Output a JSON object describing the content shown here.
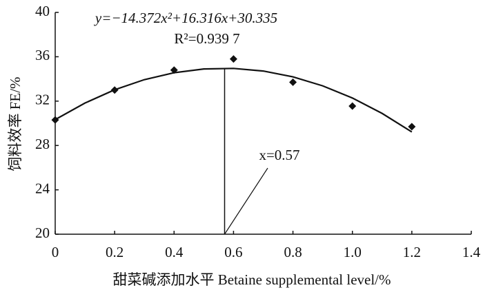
{
  "chart_data": {
    "type": "scatter",
    "equation": "y=−14.372x²+16.316x+30.335",
    "r_squared": "R²=0.939 7",
    "annotation": "x=0.57",
    "xlabel": "甜菜碱添加水平 Betaine supplemental level/%",
    "ylabel": "饲料效率 FE/%",
    "x": [
      0,
      0.2,
      0.4,
      0.6,
      0.8,
      1.0,
      1.2
    ],
    "values": [
      30.3,
      33.0,
      34.8,
      35.8,
      33.7,
      31.55,
      29.7
    ],
    "color": "#111111",
    "fit": {
      "x": [
        0,
        0.1,
        0.2,
        0.3,
        0.4,
        0.5,
        0.6,
        0.7,
        0.8,
        0.9,
        1.0,
        1.1,
        1.2
      ],
      "values": [
        30.335,
        31.823,
        33.023,
        33.936,
        34.562,
        34.9,
        34.951,
        34.714,
        34.19,
        33.378,
        32.279,
        30.892,
        29.218
      ]
    },
    "peak": {
      "x": 0.57,
      "y": 34.97
    },
    "xlim": [
      0,
      1.4
    ],
    "xticks": [
      0,
      0.2,
      0.4,
      0.6,
      0.8,
      {
        "value": 1.0,
        "label": "1.0"
      },
      1.2,
      1.4
    ],
    "ylim": [
      20,
      40
    ],
    "yticks": [
      20,
      24,
      28,
      32,
      36,
      40
    ]
  }
}
